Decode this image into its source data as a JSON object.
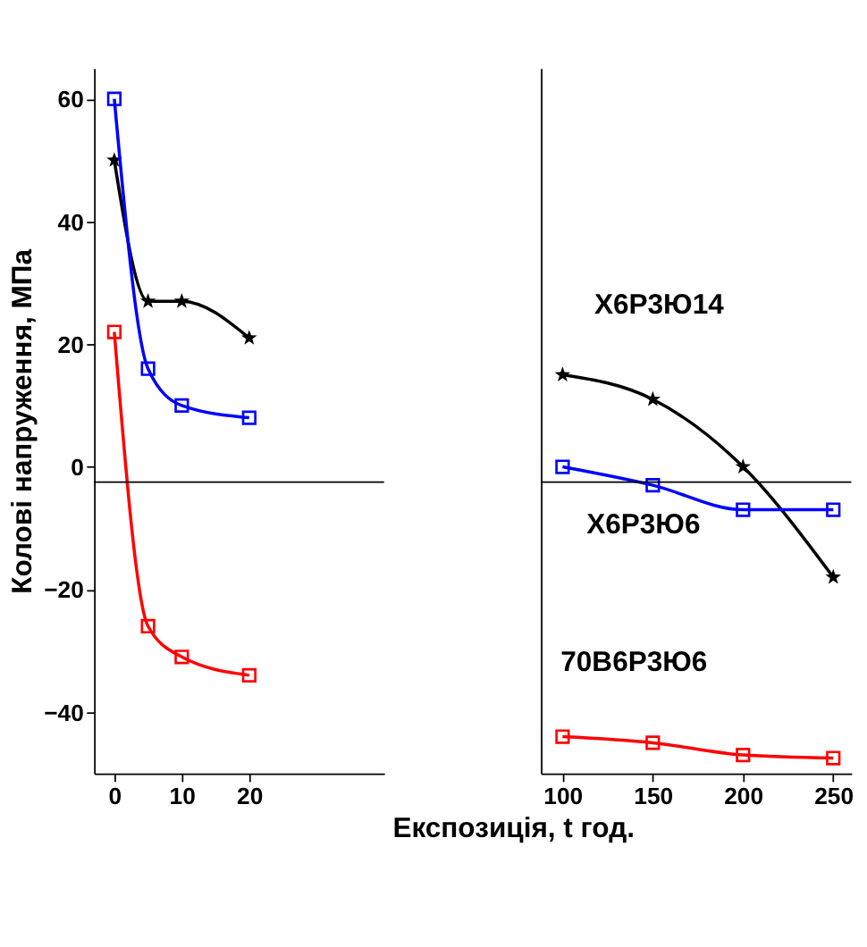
{
  "chart_data": [
    {
      "type": "line",
      "ylabel": "Колові напруження, МПа",
      "x": [
        0,
        5,
        10,
        20
      ],
      "xlim": [
        -3,
        40
      ],
      "xticks": [
        0,
        10,
        20
      ],
      "ylim": [
        -50,
        65
      ],
      "yticks": [
        -40,
        -20,
        0,
        20,
        40,
        60
      ],
      "grid": false,
      "ref_lines": [
        {
          "axis": "y",
          "value": -2.5,
          "color": "#000000"
        }
      ],
      "series": [
        {
          "color": "#000000",
          "marker": "star",
          "values": [
            50,
            27,
            27,
            21
          ]
        },
        {
          "color": "#0000ff",
          "marker": "square",
          "values": [
            60,
            16,
            10,
            8
          ]
        },
        {
          "color": "#ff0000",
          "marker": "square",
          "values": [
            22,
            -26,
            -31,
            -34
          ]
        }
      ]
    },
    {
      "type": "line",
      "xlabel": "Експозиція, t год.",
      "x": [
        100,
        150,
        200,
        250
      ],
      "xlim": [
        88,
        260
      ],
      "xticks": [
        100,
        150,
        200,
        250
      ],
      "ylim": [
        -50,
        65
      ],
      "tick_labels": "x",
      "grid": false,
      "ref_lines": [
        {
          "axis": "y",
          "value": -2.5,
          "color": "#000000"
        }
      ],
      "series": [
        {
          "name": "Х6Р3Ю14",
          "color": "#000000",
          "marker": "star",
          "values": [
            15,
            11,
            0,
            -18
          ]
        },
        {
          "name": "Х6Р3Ю6",
          "color": "#0000ff",
          "marker": "square",
          "values": [
            0,
            -3,
            -7,
            -7
          ]
        },
        {
          "name": "70В6Р3Ю6",
          "color": "#ff0000",
          "marker": "square",
          "values": [
            -44,
            -45,
            -47,
            -47.5
          ]
        }
      ]
    }
  ]
}
